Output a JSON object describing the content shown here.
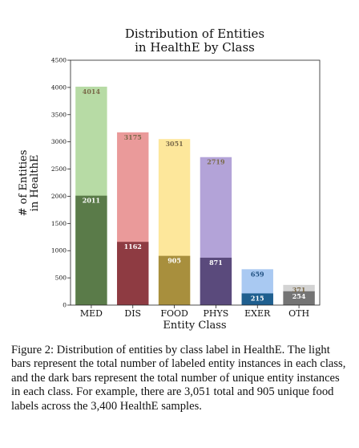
{
  "chart_data": {
    "type": "bar",
    "title_lines": [
      "Distribution of Entities",
      "in HealthE by Class"
    ],
    "xlabel": "Entity Class",
    "ylabel_lines": [
      "# of Entities",
      "in HealthE"
    ],
    "categories": [
      "MED",
      "DIS",
      "FOOD",
      "PHYS",
      "EXER",
      "OTH"
    ],
    "ylim": [
      0,
      4500
    ],
    "yticks": [
      0,
      500,
      1000,
      1500,
      2000,
      2500,
      3000,
      3500,
      4000,
      4500
    ],
    "grid": false,
    "series": [
      {
        "values": [
          4014,
          3175,
          3051,
          2719,
          659,
          371
        ]
      },
      {
        "values": [
          2011,
          1162,
          905,
          871,
          215,
          254
        ]
      }
    ],
    "colors": {
      "light": [
        "#b7dba5",
        "#ea9a9a",
        "#fde79b",
        "#b3a3d8",
        "#a9c9f2",
        "#d3d3d3"
      ],
      "dark": [
        "#5a7b49",
        "#8e3b42",
        "#a88f3d",
        "#5a4a7c",
        "#1f5f8f",
        "#747474"
      ],
      "light_label": "#7a6a4a",
      "dark_label": "#ffffff"
    }
  },
  "caption": "Figure 2: Distribution of entities by class label in HealthE. The light bars represent the total number of labeled entity instances in each class, and the dark bars represent the total number of unique entity instances in each class. For example, there are 3,051 total and 905 unique food labels across the 3,400 HealthE samples."
}
